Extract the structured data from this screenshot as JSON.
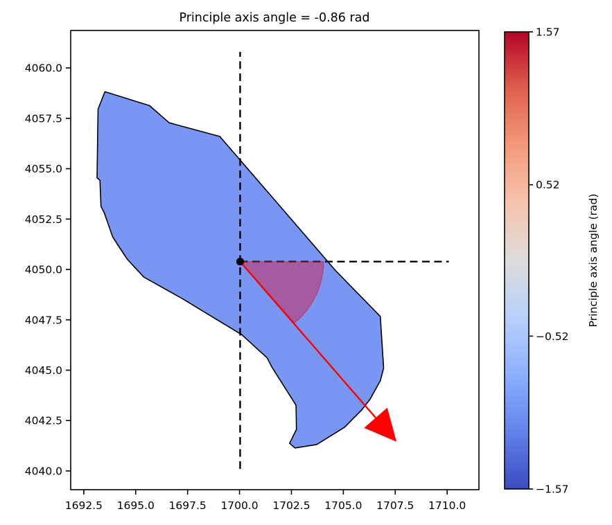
{
  "chart_data": {
    "type": "area",
    "title": "Principle axis angle = -0.86 rad",
    "principal_axis_angle_rad": -0.86,
    "xlabel": "",
    "ylabel": "",
    "grid": false,
    "xlim": [
      1691.87,
      1711.53
    ],
    "ylim": [
      4039.07,
      4061.86
    ],
    "x_ticks": {
      "values": [
        1692.5,
        1695.0,
        1697.5,
        1700.0,
        1702.5,
        1705.0,
        1707.5,
        1710.0
      ],
      "labels": [
        "1692.5",
        "1695.0",
        "1697.5",
        "1700.0",
        "1702.5",
        "1705.0",
        "1707.5",
        "1710.0"
      ]
    },
    "y_ticks": {
      "values": [
        4040.0,
        4042.5,
        4045.0,
        4047.5,
        4050.0,
        4052.5,
        4055.0,
        4057.5,
        4060.0
      ],
      "labels": [
        "4040.0",
        "4042.5",
        "4045.0",
        "4047.5",
        "4050.0",
        "4052.5",
        "4055.0",
        "4057.5",
        "4060.0"
      ]
    },
    "region_polygon": {
      "fill": "#7896f2",
      "edge_color": "#000000",
      "vertices": [
        [
          1693.52,
          4058.82
        ],
        [
          1695.67,
          4058.13
        ],
        [
          1696.61,
          4057.28
        ],
        [
          1699.05,
          4056.6
        ],
        [
          1704.62,
          4049.95
        ],
        [
          1706.78,
          4047.67
        ],
        [
          1706.94,
          4045.1
        ],
        [
          1706.78,
          4044.47
        ],
        [
          1706.28,
          4043.55
        ],
        [
          1705.89,
          4043.03
        ],
        [
          1705.06,
          4042.17
        ],
        [
          1703.72,
          4041.31
        ],
        [
          1702.67,
          4041.14
        ],
        [
          1702.41,
          4041.37
        ],
        [
          1702.74,
          4042.06
        ],
        [
          1702.72,
          4043.26
        ],
        [
          1701.56,
          4045.15
        ],
        [
          1701.33,
          4045.61
        ],
        [
          1700.11,
          4046.76
        ],
        [
          1697.28,
          4048.53
        ],
        [
          1695.39,
          4049.62
        ],
        [
          1694.6,
          4050.5
        ],
        [
          1694.17,
          4051.17
        ],
        [
          1693.89,
          4051.62
        ],
        [
          1693.48,
          4052.83
        ],
        [
          1693.33,
          4053.12
        ],
        [
          1693.28,
          4054.43
        ],
        [
          1693.14,
          4054.55
        ],
        [
          1693.19,
          4057.96
        ]
      ]
    },
    "centroid_marker": {
      "x": 1700.03,
      "y": 4050.39,
      "color": "#000000"
    },
    "crosshair_lines": {
      "style": "dashed",
      "color": "#000000",
      "vertical": {
        "x": 1700.03,
        "y1": 4040.1,
        "y2": 4060.8
      },
      "horizontal": {
        "y": 4050.39,
        "x1": 1700.03,
        "x2": 1710.08
      }
    },
    "angle_wedge": {
      "center_x": 1700.03,
      "center_y": 4050.39,
      "radius": 4.02,
      "theta1_deg": -49.3,
      "theta2_deg": 0,
      "fill": "#dc143c",
      "opacity": 0.45
    },
    "principal_axis_arrow": {
      "x1": 1700.03,
      "y1": 4050.39,
      "tip_x": 1707.56,
      "tip_y": 4041.45,
      "head_length": 1.55,
      "head_width": 1.5,
      "color": "#ff0000"
    },
    "colorbar": {
      "label": "Principle axis angle (rad)",
      "cmap": "coolwarm",
      "vmin": -1.57,
      "vmax": 1.57,
      "tick_values": [
        1.57,
        0.52,
        -0.52,
        -1.57
      ],
      "tick_labels": [
        "1.57",
        "0.52",
        "−0.52",
        "−1.57"
      ],
      "gradient_top_to_bottom": [
        "#b40426",
        "#de604d",
        "#f49a7b",
        "#f5c4ad",
        "#dddcdb",
        "#b8d0f9",
        "#8db0fe",
        "#6282ea",
        "#3b4cc0"
      ]
    }
  }
}
